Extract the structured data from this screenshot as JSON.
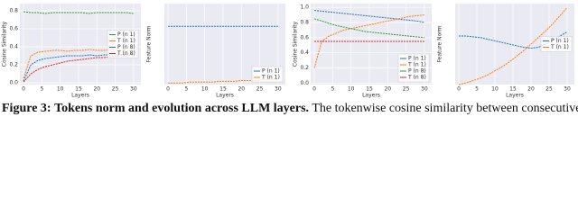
{
  "chart_data": [
    {
      "type": "line",
      "ylabel": "Cosine Similarity",
      "xlabel": "Layers",
      "x": [
        0,
        2,
        4,
        6,
        8,
        10,
        12,
        14,
        16,
        18,
        20,
        22,
        24,
        26,
        28,
        30
      ],
      "xlim": [
        -1,
        32
      ],
      "xticks": [
        0,
        5,
        10,
        15,
        20,
        25,
        30
      ],
      "ylim": [
        -0.02,
        0.88
      ],
      "yticks": [
        {
          "value": 0,
          "label": "0.0"
        },
        0.2,
        0.4,
        0.6,
        0.8
      ],
      "grid": true,
      "legend": "center right",
      "series": [
        {
          "name": "P (n 1)",
          "color": "#2ca02c",
          "values": [
            0.79,
            0.78,
            0.78,
            0.77,
            0.78,
            0.78,
            0.78,
            0.78,
            0.78,
            0.77,
            0.78,
            0.78,
            0.78,
            0.78,
            0.78,
            0.77
          ]
        },
        {
          "name": "T (n 1)",
          "color": "#ff7f0e",
          "values": [
            0.05,
            0.3,
            0.34,
            0.35,
            0.36,
            0.36,
            0.35,
            0.36,
            0.36,
            0.37,
            0.36,
            0.36,
            0.37,
            0.37,
            0.36,
            0.36
          ]
        },
        {
          "name": "P (n 8)",
          "color": "#1f77b4",
          "values": [
            0.02,
            0.2,
            0.25,
            0.27,
            0.28,
            0.29,
            0.3,
            0.3,
            0.3,
            0.31,
            0.3,
            0.31,
            0.31,
            0.31,
            0.32,
            0.32
          ]
        },
        {
          "name": "T (n 8)",
          "color": "#d62728",
          "values": [
            0.01,
            0.1,
            0.15,
            0.18,
            0.2,
            0.22,
            0.24,
            0.25,
            0.26,
            0.27,
            0.28,
            0.28,
            0.29,
            0.3,
            0.3,
            0.31
          ]
        }
      ]
    },
    {
      "type": "line",
      "ylabel": "Feature Norm",
      "xlabel": "Layers",
      "x": [
        0,
        2,
        4,
        6,
        8,
        10,
        12,
        14,
        16,
        18,
        20,
        22,
        24,
        26,
        28,
        30
      ],
      "xlim": [
        -1,
        32
      ],
      "xticks": [
        0,
        5,
        10,
        15,
        20,
        25,
        30
      ],
      "ylim": [
        0,
        1
      ],
      "grid": true,
      "legend": "lower right",
      "series": [
        {
          "name": "P (n 1)",
          "color": "#1f77b4",
          "values": [
            0.72,
            0.72,
            0.72,
            0.72,
            0.72,
            0.72,
            0.72,
            0.72,
            0.72,
            0.72,
            0.72,
            0.72,
            0.72,
            0.72,
            0.72,
            0.72
          ]
        },
        {
          "name": "T (n 1)",
          "color": "#ff7f0e",
          "values": [
            0.02,
            0.02,
            0.02,
            0.03,
            0.03,
            0.03,
            0.03,
            0.04,
            0.04,
            0.04,
            0.05,
            0.05,
            0.05,
            0.06,
            0.06,
            0.06
          ]
        }
      ]
    },
    {
      "type": "line",
      "ylabel": "Cosine Similarity",
      "xlabel": "Layers",
      "x": [
        0,
        2,
        4,
        6,
        8,
        10,
        12,
        14,
        16,
        18,
        20,
        22,
        24,
        26,
        28,
        30
      ],
      "xlim": [
        -1,
        32
      ],
      "xticks": [
        0,
        5,
        10,
        15,
        20,
        25,
        30
      ],
      "ylim": [
        -0.02,
        1.05
      ],
      "yticks": [
        {
          "value": 0,
          "label": "0.0"
        },
        0.2,
        0.4,
        0.6,
        0.8,
        {
          "value": 1,
          "label": "1.0"
        }
      ],
      "grid": true,
      "legend": "lower right",
      "series": [
        {
          "name": "P (n 1)",
          "color": "#1f77b4",
          "values": [
            0.96,
            0.95,
            0.94,
            0.93,
            0.92,
            0.91,
            0.9,
            0.89,
            0.88,
            0.87,
            0.86,
            0.85,
            0.84,
            0.83,
            0.82,
            0.8
          ]
        },
        {
          "name": "T (n 1)",
          "color": "#ff7f0e",
          "values": [
            0.2,
            0.55,
            0.62,
            0.66,
            0.7,
            0.72,
            0.74,
            0.76,
            0.78,
            0.8,
            0.82,
            0.84,
            0.86,
            0.88,
            0.89,
            0.9
          ]
        },
        {
          "name": "P (n 8)",
          "color": "#2ca02c",
          "values": [
            0.85,
            0.82,
            0.79,
            0.76,
            0.74,
            0.72,
            0.7,
            0.68,
            0.67,
            0.66,
            0.65,
            0.64,
            0.63,
            0.62,
            0.61,
            0.6
          ]
        },
        {
          "name": "T (n 8)",
          "color": "#d62728",
          "values": [
            0.55,
            0.55,
            0.55,
            0.55,
            0.55,
            0.55,
            0.55,
            0.55,
            0.55,
            0.55,
            0.55,
            0.55,
            0.55,
            0.55,
            0.55,
            0.55
          ]
        }
      ]
    },
    {
      "type": "line",
      "ylabel": "Feature Norm",
      "xlabel": "Layers",
      "x": [
        0,
        2,
        4,
        6,
        8,
        10,
        12,
        14,
        16,
        18,
        20,
        22,
        24,
        26,
        28,
        30
      ],
      "xlim": [
        -1,
        32
      ],
      "xticks": [
        0,
        5,
        10,
        15,
        20,
        25,
        30
      ],
      "ylim": [
        0,
        1
      ],
      "grid": true,
      "legend": "center right",
      "series": [
        {
          "name": "P (n 1)",
          "color": "#1f77b4",
          "values": [
            0.6,
            0.6,
            0.59,
            0.58,
            0.56,
            0.54,
            0.52,
            0.5,
            0.48,
            0.46,
            0.45,
            0.46,
            0.5,
            0.55,
            0.6,
            0.65
          ]
        },
        {
          "name": "T (n 1)",
          "color": "#ff7f0e",
          "values": [
            0.0,
            0.02,
            0.05,
            0.08,
            0.12,
            0.17,
            0.22,
            0.28,
            0.35,
            0.42,
            0.5,
            0.58,
            0.66,
            0.75,
            0.85,
            0.95
          ]
        }
      ]
    }
  ],
  "caption": {
    "label": "Figure 3:",
    "title": "Tokens norm and evolution across LLM layers.",
    "text": "The tokenwise cosine similarity between consecutive"
  }
}
